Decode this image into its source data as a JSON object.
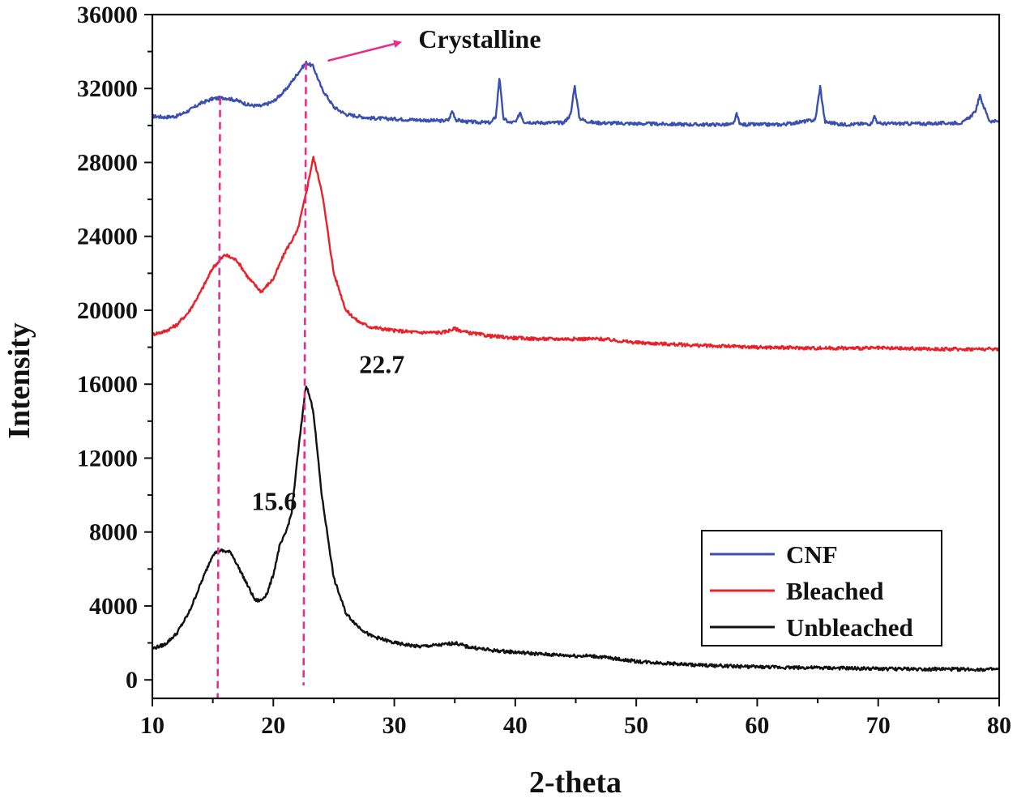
{
  "chart_data": {
    "type": "line",
    "title": "",
    "xlabel": "2-theta",
    "ylabel": "Intensity",
    "xlim": [
      10,
      80
    ],
    "ylim": [
      -1000,
      36000
    ],
    "x_ticks": [
      10,
      20,
      30,
      40,
      50,
      60,
      70,
      80
    ],
    "x_tick_labels": [
      "10",
      "20",
      "30",
      "40",
      "50",
      "60",
      "70",
      "80"
    ],
    "y_ticks": [
      0,
      4000,
      8000,
      12000,
      16000,
      20000,
      24000,
      28000,
      32000,
      36000
    ],
    "y_tick_labels": [
      "0",
      "4000",
      "8000",
      "12000",
      "16000",
      "20000",
      "24000",
      "28000",
      "32000",
      "36000"
    ],
    "legend_position": "bottom-right",
    "series": [
      {
        "name": "CNF",
        "color": "#3b4fb0",
        "points": [
          [
            10,
            30500
          ],
          [
            11,
            30450
          ],
          [
            12,
            30500
          ],
          [
            13,
            30800
          ],
          [
            14,
            31200
          ],
          [
            15,
            31450
          ],
          [
            16,
            31500
          ],
          [
            17,
            31350
          ],
          [
            18,
            31100
          ],
          [
            19,
            31050
          ],
          [
            20,
            31300
          ],
          [
            21,
            31900
          ],
          [
            22,
            32800
          ],
          [
            22.7,
            33400
          ],
          [
            23.3,
            33200
          ],
          [
            24,
            32000
          ],
          [
            25,
            31000
          ],
          [
            26,
            30600
          ],
          [
            28,
            30400
          ],
          [
            30,
            30350
          ],
          [
            32,
            30300
          ],
          [
            34,
            30250
          ],
          [
            34.5,
            30300
          ],
          [
            34.8,
            30800
          ],
          [
            35.1,
            30300
          ],
          [
            36,
            30200
          ],
          [
            38,
            30150
          ],
          [
            38.4,
            30500
          ],
          [
            38.7,
            32700
          ],
          [
            39.0,
            30400
          ],
          [
            39.5,
            30150
          ],
          [
            40.1,
            30200
          ],
          [
            40.4,
            30750
          ],
          [
            40.7,
            30200
          ],
          [
            42,
            30150
          ],
          [
            44,
            30150
          ],
          [
            44.6,
            30600
          ],
          [
            44.9,
            32200
          ],
          [
            45.3,
            30400
          ],
          [
            45.8,
            30250
          ],
          [
            46.5,
            30150
          ],
          [
            50,
            30100
          ],
          [
            55,
            30050
          ],
          [
            58,
            30050
          ],
          [
            58.3,
            30600
          ],
          [
            58.6,
            30050
          ],
          [
            62,
            30050
          ],
          [
            64.8,
            30300
          ],
          [
            65.2,
            32100
          ],
          [
            65.6,
            30200
          ],
          [
            67,
            30050
          ],
          [
            69.4,
            30100
          ],
          [
            69.7,
            30500
          ],
          [
            70,
            30100
          ],
          [
            74,
            30100
          ],
          [
            77,
            30150
          ],
          [
            78,
            30700
          ],
          [
            78.4,
            31600
          ],
          [
            78.8,
            30900
          ],
          [
            79.2,
            30250
          ],
          [
            80,
            30200
          ]
        ]
      },
      {
        "name": "Bleached",
        "color": "#e8222b",
        "points": [
          [
            10,
            18700
          ],
          [
            11,
            18850
          ],
          [
            12,
            19200
          ],
          [
            13,
            19900
          ],
          [
            14,
            21000
          ],
          [
            15,
            22300
          ],
          [
            16,
            23000
          ],
          [
            17,
            22700
          ],
          [
            18,
            21700
          ],
          [
            19,
            21000
          ],
          [
            20,
            21700
          ],
          [
            21,
            23200
          ],
          [
            22,
            24300
          ],
          [
            22.7,
            26300
          ],
          [
            23.3,
            28300
          ],
          [
            24,
            26500
          ],
          [
            25,
            22000
          ],
          [
            26,
            20000
          ],
          [
            27,
            19400
          ],
          [
            28,
            19100
          ],
          [
            30,
            18900
          ],
          [
            32,
            18800
          ],
          [
            34,
            18800
          ],
          [
            35,
            19000
          ],
          [
            36,
            18800
          ],
          [
            38,
            18600
          ],
          [
            40,
            18500
          ],
          [
            42,
            18450
          ],
          [
            45,
            18450
          ],
          [
            47,
            18450
          ],
          [
            50,
            18250
          ],
          [
            55,
            18100
          ],
          [
            60,
            18000
          ],
          [
            65,
            17950
          ],
          [
            70,
            17950
          ],
          [
            75,
            17900
          ],
          [
            80,
            17900
          ]
        ]
      },
      {
        "name": "Unbleached",
        "color": "#111111",
        "points": [
          [
            10,
            1700
          ],
          [
            11,
            1900
          ],
          [
            12,
            2500
          ],
          [
            13,
            3600
          ],
          [
            14,
            5200
          ],
          [
            15,
            6800
          ],
          [
            15.6,
            7000
          ],
          [
            16.5,
            6900
          ],
          [
            17.5,
            5600
          ],
          [
            18.5,
            4300
          ],
          [
            19,
            4300
          ],
          [
            19.5,
            4700
          ],
          [
            20,
            5700
          ],
          [
            20.5,
            7200
          ],
          [
            21,
            7900
          ],
          [
            21.5,
            9000
          ],
          [
            22,
            12000
          ],
          [
            22.7,
            16000
          ],
          [
            23.3,
            14600
          ],
          [
            24,
            10000
          ],
          [
            25,
            5500
          ],
          [
            26,
            3600
          ],
          [
            27,
            2900
          ],
          [
            28,
            2400
          ],
          [
            30,
            2000
          ],
          [
            32,
            1800
          ],
          [
            34,
            1900
          ],
          [
            35,
            2000
          ],
          [
            36,
            1800
          ],
          [
            38,
            1600
          ],
          [
            40,
            1500
          ],
          [
            42,
            1400
          ],
          [
            45,
            1300
          ],
          [
            46,
            1300
          ],
          [
            47,
            1250
          ],
          [
            50,
            1000
          ],
          [
            55,
            800
          ],
          [
            60,
            700
          ],
          [
            65,
            650
          ],
          [
            70,
            600
          ],
          [
            75,
            580
          ],
          [
            80,
            560
          ]
        ]
      }
    ],
    "annotations": [
      {
        "text": "Crystalline",
        "x": 32,
        "y": 34200
      },
      {
        "text": "22.7",
        "x": 27.1,
        "y": 16600
      },
      {
        "text": "15.6",
        "x": 18.2,
        "y": 9200
      }
    ],
    "reference_lines": [
      {
        "x_top": 15.6,
        "x_bottom": 15.4,
        "y_top": 31500,
        "y_bottom": -1000,
        "color": "#e62e8a"
      },
      {
        "x_top": 22.7,
        "x_bottom": 22.5,
        "y_top": 33400,
        "y_bottom": -300,
        "color": "#e62e8a"
      }
    ],
    "arrow": {
      "from": [
        24.5,
        33500
      ],
      "to": [
        30.5,
        34500
      ],
      "color": "#e62e8a"
    }
  }
}
